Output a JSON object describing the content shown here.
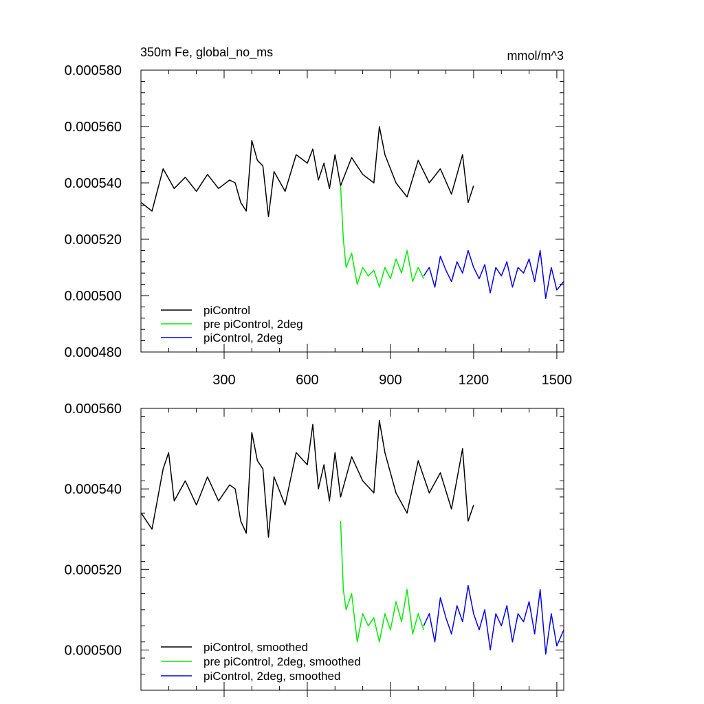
{
  "chart_data": [
    {
      "type": "line",
      "title_left": "350m Fe, global_no_ms",
      "title_right": "mmol/m^3",
      "xlim": [
        0,
        1525
      ],
      "ylim": [
        0.00048,
        0.00058
      ],
      "yticks": [
        "0.000480",
        "0.000500",
        "0.000520",
        "0.000540",
        "0.000560",
        "0.000580"
      ],
      "xticks": [
        "300",
        "600",
        "900",
        "1200",
        "1500"
      ],
      "xtick_values": [
        300,
        600,
        900,
        1200,
        1500
      ],
      "legend": [
        {
          "label": "piControl",
          "color": "#000000"
        },
        {
          "label": "pre piControl, 2deg",
          "color": "#00ee00"
        },
        {
          "label": "piControl, 2deg",
          "color": "#0000ee"
        }
      ],
      "series": [
        {
          "name": "piControl",
          "color": "#000000",
          "x": [
            1,
            40,
            80,
            120,
            160,
            200,
            240,
            280,
            320,
            340,
            360,
            380,
            400,
            420,
            440,
            460,
            480,
            520,
            560,
            600,
            620,
            640,
            660,
            680,
            700,
            720,
            760,
            800,
            840,
            860,
            880,
            920,
            960,
            1000,
            1040,
            1080,
            1120,
            1160,
            1180,
            1200
          ],
          "y": [
            0.000533,
            0.00053,
            0.000545,
            0.000538,
            0.000542,
            0.000537,
            0.000543,
            0.000538,
            0.000541,
            0.00054,
            0.000533,
            0.00053,
            0.000555,
            0.000548,
            0.000546,
            0.000528,
            0.000544,
            0.000537,
            0.00055,
            0.000547,
            0.000552,
            0.000541,
            0.000547,
            0.000538,
            0.00055,
            0.000539,
            0.000549,
            0.000543,
            0.00054,
            0.00056,
            0.00055,
            0.00054,
            0.000535,
            0.000548,
            0.00054,
            0.000545,
            0.000536,
            0.00055,
            0.000533,
            0.000539
          ]
        },
        {
          "name": "pre piControl, 2deg",
          "color": "#00ee00",
          "x": [
            720,
            730,
            740,
            760,
            780,
            800,
            820,
            840,
            860,
            880,
            900,
            920,
            940,
            960,
            980,
            1000,
            1020
          ],
          "y": [
            0.000539,
            0.00052,
            0.00051,
            0.000515,
            0.000504,
            0.00051,
            0.000507,
            0.000509,
            0.000503,
            0.00051,
            0.000506,
            0.000513,
            0.000508,
            0.000516,
            0.000505,
            0.00051,
            0.000506
          ]
        },
        {
          "name": "piControl, 2deg",
          "color": "#0000ee",
          "x": [
            1020,
            1040,
            1060,
            1080,
            1100,
            1120,
            1140,
            1160,
            1180,
            1200,
            1220,
            1240,
            1260,
            1280,
            1300,
            1320,
            1340,
            1360,
            1380,
            1400,
            1420,
            1440,
            1460,
            1480,
            1500,
            1525
          ],
          "y": [
            0.000507,
            0.00051,
            0.000503,
            0.000514,
            0.000509,
            0.000505,
            0.000512,
            0.000508,
            0.000516,
            0.00051,
            0.000506,
            0.000511,
            0.000501,
            0.00051,
            0.000507,
            0.000512,
            0.000503,
            0.00051,
            0.000508,
            0.000513,
            0.000505,
            0.000516,
            0.000499,
            0.00051,
            0.000502,
            0.000505
          ]
        }
      ]
    },
    {
      "type": "line",
      "xlim": [
        0,
        1525
      ],
      "ylim": [
        0.00049,
        0.00056
      ],
      "yticks": [
        "0.000500",
        "0.000520",
        "0.000540",
        "0.000560"
      ],
      "ytick_values": [
        0.0005,
        0.00052,
        0.00054,
        0.00056
      ],
      "legend": [
        {
          "label": "piControl, smoothed",
          "color": "#000000"
        },
        {
          "label": "pre piControl, 2deg, smoothed",
          "color": "#00ee00"
        },
        {
          "label": "piControl, 2deg, smoothed",
          "color": "#0000ee"
        }
      ],
      "series": [
        {
          "name": "piControl, smoothed",
          "color": "#000000",
          "x": [
            1,
            40,
            80,
            100,
            120,
            160,
            200,
            240,
            280,
            320,
            340,
            360,
            380,
            400,
            420,
            440,
            460,
            480,
            520,
            560,
            600,
            620,
            640,
            660,
            680,
            700,
            720,
            760,
            800,
            840,
            860,
            880,
            920,
            960,
            1000,
            1040,
            1080,
            1120,
            1160,
            1180,
            1200
          ],
          "y": [
            0.000534,
            0.00053,
            0.000545,
            0.000549,
            0.000537,
            0.000542,
            0.000536,
            0.000543,
            0.000537,
            0.000541,
            0.00054,
            0.000532,
            0.000529,
            0.000554,
            0.000547,
            0.000545,
            0.000528,
            0.000543,
            0.000536,
            0.000549,
            0.000546,
            0.000556,
            0.00054,
            0.000546,
            0.000537,
            0.000549,
            0.000538,
            0.000548,
            0.000542,
            0.000539,
            0.000557,
            0.000549,
            0.000539,
            0.000534,
            0.000547,
            0.000539,
            0.000544,
            0.000535,
            0.00055,
            0.000532,
            0.000536
          ]
        },
        {
          "name": "pre piControl, 2deg, smoothed",
          "color": "#00ee00",
          "x": [
            720,
            730,
            740,
            760,
            780,
            800,
            820,
            840,
            860,
            880,
            900,
            920,
            940,
            960,
            980,
            1000,
            1020
          ],
          "y": [
            0.000532,
            0.000515,
            0.00051,
            0.000514,
            0.000502,
            0.000509,
            0.000506,
            0.000508,
            0.000502,
            0.000509,
            0.000505,
            0.000512,
            0.000507,
            0.000515,
            0.000504,
            0.000509,
            0.000505
          ]
        },
        {
          "name": "piControl, 2deg, smoothed",
          "color": "#0000ee",
          "x": [
            1020,
            1040,
            1060,
            1080,
            1100,
            1120,
            1140,
            1160,
            1180,
            1200,
            1220,
            1240,
            1260,
            1280,
            1300,
            1320,
            1340,
            1360,
            1380,
            1400,
            1420,
            1440,
            1460,
            1480,
            1500,
            1525
          ],
          "y": [
            0.000506,
            0.000509,
            0.000502,
            0.000513,
            0.000508,
            0.000504,
            0.000511,
            0.000507,
            0.000516,
            0.000509,
            0.000505,
            0.00051,
            0.0005,
            0.000509,
            0.000506,
            0.000511,
            0.000502,
            0.000509,
            0.000507,
            0.000512,
            0.000504,
            0.000515,
            0.000499,
            0.000509,
            0.000501,
            0.000505
          ]
        }
      ]
    }
  ]
}
